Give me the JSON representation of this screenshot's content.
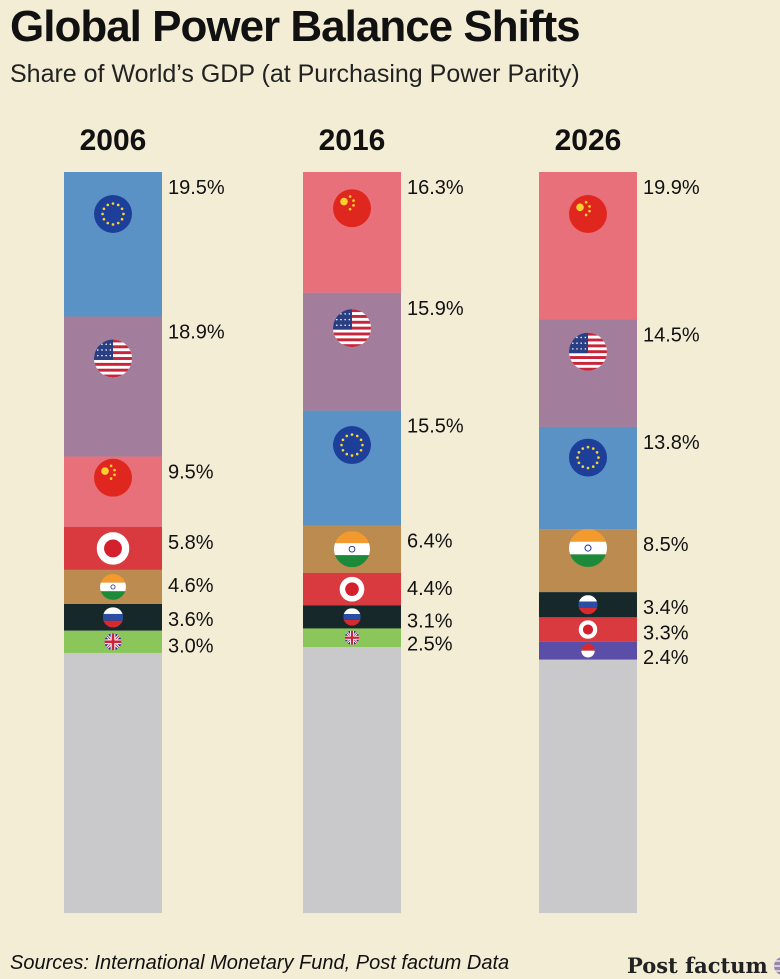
{
  "title": "Global Power Balance Shifts",
  "subtitle": "Share of World’s GDP (at Purchasing Power Parity)",
  "source": "Sources: International Monetary Fund, Post factum Data",
  "brand": "Post factum",
  "colors": {
    "eu": "#5b92c6",
    "usa": "#a37d9c",
    "china": "#e8707a",
    "japan": "#d93a40",
    "india": "#bb8b4f",
    "russia": "#16282a",
    "uk": "#8ac659",
    "indonesia": "#5b4ea8",
    "rest": "#c9c9cb"
  },
  "chart_data": {
    "type": "bar",
    "stacked": true,
    "categories": [
      "2006",
      "2016",
      "2026"
    ],
    "columns": [
      {
        "year": "2006",
        "segments": [
          {
            "country": "EU",
            "flag": "eu",
            "value": 19.5,
            "label": "19.5%"
          },
          {
            "country": "USA",
            "flag": "usa",
            "value": 18.9,
            "label": "18.9%"
          },
          {
            "country": "China",
            "flag": "china",
            "value": 9.5,
            "label": "9.5%"
          },
          {
            "country": "Japan",
            "flag": "japan",
            "value": 5.8,
            "label": "5.8%"
          },
          {
            "country": "India",
            "flag": "india",
            "value": 4.6,
            "label": "4.6%"
          },
          {
            "country": "Russia",
            "flag": "russia",
            "value": 3.6,
            "label": "3.6%"
          },
          {
            "country": "UK",
            "flag": "uk",
            "value": 3.0,
            "label": "3.0%"
          }
        ]
      },
      {
        "year": "2016",
        "segments": [
          {
            "country": "China",
            "flag": "china",
            "value": 16.3,
            "label": "16.3%"
          },
          {
            "country": "USA",
            "flag": "usa",
            "value": 15.9,
            "label": "15.9%"
          },
          {
            "country": "EU",
            "flag": "eu",
            "value": 15.5,
            "label": "15.5%"
          },
          {
            "country": "India",
            "flag": "india",
            "value": 6.4,
            "label": "6.4%"
          },
          {
            "country": "Japan",
            "flag": "japan",
            "value": 4.4,
            "label": "4.4%"
          },
          {
            "country": "Russia",
            "flag": "russia",
            "value": 3.1,
            "label": "3.1%"
          },
          {
            "country": "UK",
            "flag": "uk",
            "value": 2.5,
            "label": "2.5%"
          }
        ]
      },
      {
        "year": "2026",
        "segments": [
          {
            "country": "China",
            "flag": "china",
            "value": 19.9,
            "label": "19.9%"
          },
          {
            "country": "USA",
            "flag": "usa",
            "value": 14.5,
            "label": "14.5%"
          },
          {
            "country": "EU",
            "flag": "eu",
            "value": 13.8,
            "label": "13.8%"
          },
          {
            "country": "India",
            "flag": "india",
            "value": 8.5,
            "label": "8.5%"
          },
          {
            "country": "Russia",
            "flag": "russia",
            "value": 3.4,
            "label": "3.4%"
          },
          {
            "country": "Japan",
            "flag": "japan",
            "value": 3.3,
            "label": "3.3%"
          },
          {
            "country": "Indonesia",
            "flag": "indonesia",
            "value": 2.4,
            "label": "2.4%"
          }
        ]
      }
    ],
    "ylim": [
      0,
      100
    ],
    "grid": false,
    "legend": "none"
  }
}
